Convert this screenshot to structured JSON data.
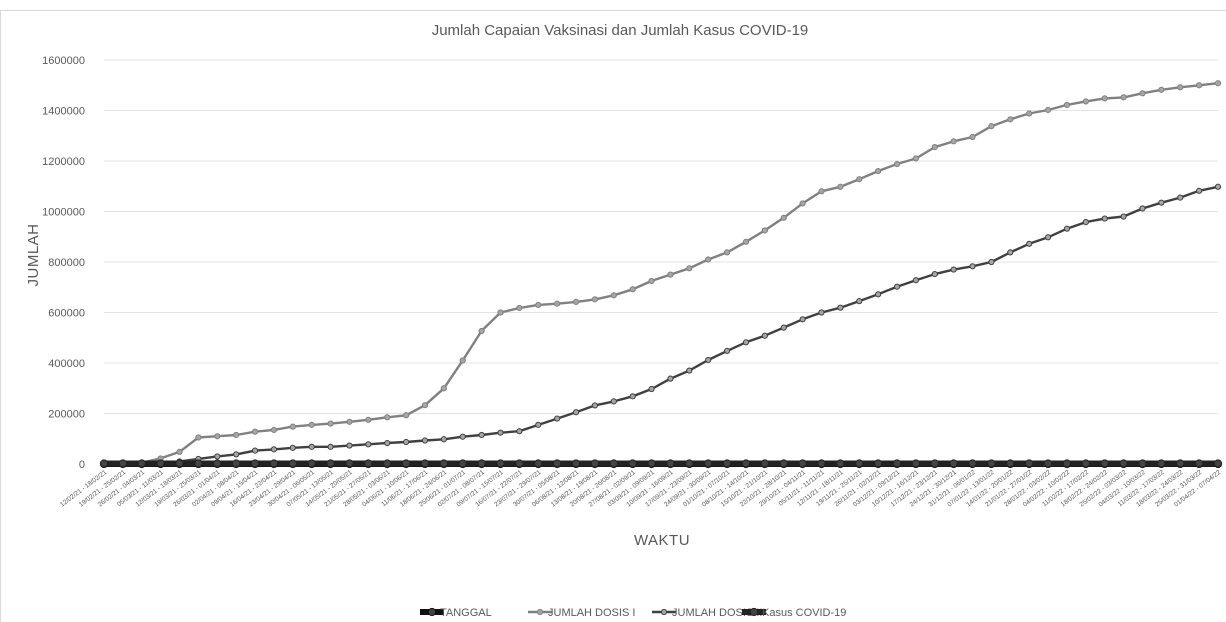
{
  "chart_data": {
    "type": "line",
    "title": "Jumlah Capaian Vaksinasi dan Jumlah Kasus COVID-19",
    "xlabel": "WAKTU",
    "ylabel": "JUMLAH",
    "ylim": [
      0,
      1600000
    ],
    "yticks": [
      "0",
      "200000",
      "400000",
      "600000",
      "800000",
      "1000000",
      "1200000",
      "1400000",
      "1600000"
    ],
    "grid": "horizontal",
    "legend_position": "bottom",
    "categories": [
      "12/02/21 - 18/02/21",
      "19/02/21 - 25/02/21",
      "26/02/21 - 04/03/21",
      "05/03/21 - 11/03/21",
      "12/03/21 - 18/03/21",
      "19/03/21 - 25/03/21",
      "26/03/21 - 01/04/21",
      "02/04/21 - 08/04/21",
      "09/04/21 - 15/04/21",
      "16/04/21 - 22/04/21",
      "23/04/21 - 29/04/21",
      "30/04/21 - 06/05/21",
      "07/05/21 - 13/05/21",
      "14/05/21 - 20/05/21",
      "21/05/21 - 27/05/21",
      "28/05/21 - 03/06/21",
      "04/06/21 - 10/06/21",
      "11/06/21 - 17/06/21",
      "18/06/21 - 24/06/21",
      "25/06/21 - 01/07/21",
      "02/07/21 - 08/07/21",
      "09/07/21 - 15/07/21",
      "16/07/21 - 22/07/21",
      "23/07/21 - 29/07/21",
      "30/07/21 - 05/08/21",
      "06/08/21 - 12/08/21",
      "13/08/21 - 19/08/21",
      "20/08/21 - 26/08/21",
      "27/08/21 - 02/09/21",
      "03/09/21 - 09/09/21",
      "10/09/21 - 16/09/21",
      "17/09/21 - 23/09/21",
      "24/09/21 - 30/09/21",
      "01/10/21 - 07/10/21",
      "08/10/21 - 14/10/21",
      "15/10/21 - 21/10/21",
      "22/10/21 - 28/10/21",
      "29/10/21 - 04/11/21",
      "05/11/21 - 11/11/21",
      "12/11/21 - 18/11/21",
      "19/11/21 - 25/11/21",
      "26/11/21 - 02/12/21",
      "03/12/21 - 09/12/21",
      "10/12/21 - 16/12/21",
      "17/12/21 - 23/12/21",
      "24/12/21 - 30/12/21",
      "31/12/21 - 06/01/22",
      "07/01/22 - 13/01/22",
      "14/01/22 - 20/01/22",
      "21/01/22 - 27/01/22",
      "28/01/22 - 03/02/22",
      "04/02/22 - 10/02/22",
      "11/02/22 - 17/02/22",
      "18/02/22 - 24/02/22",
      "25/02/22 - 03/03/22",
      "04/03/22 - 10/03/22",
      "11/03/22 - 17/03/22",
      "18/03/22 - 24/03/22",
      "25/03/22 - 31/03/22",
      "01/04/22 - 07/04/22"
    ],
    "series": [
      {
        "name": "TANGGAL",
        "color": "#111111",
        "values": [
          0,
          0,
          0,
          0,
          0,
          0,
          0,
          0,
          0,
          0,
          0,
          0,
          0,
          0,
          0,
          0,
          0,
          0,
          0,
          0,
          0,
          0,
          0,
          0,
          0,
          0,
          0,
          0,
          0,
          0,
          0,
          0,
          0,
          0,
          0,
          0,
          0,
          0,
          0,
          0,
          0,
          0,
          0,
          0,
          0,
          0,
          0,
          0,
          0,
          0,
          0,
          0,
          0,
          0,
          0,
          0,
          0,
          0,
          0,
          0
        ]
      },
      {
        "name": "JUMLAH DOSIS I",
        "color": "#808080",
        "values": [
          0,
          0,
          5000,
          22000,
          48000,
          105000,
          110000,
          115000,
          128000,
          135000,
          148000,
          155000,
          160000,
          167000,
          175000,
          185000,
          193000,
          233000,
          300000,
          410000,
          527000,
          600000,
          618000,
          630000,
          635000,
          642000,
          652000,
          668000,
          692000,
          725000,
          750000,
          775000,
          810000,
          838000,
          880000,
          925000,
          975000,
          1032000,
          1080000,
          1098000,
          1128000,
          1160000,
          1188000,
          1210000,
          1255000,
          1278000,
          1295000,
          1338000,
          1365000,
          1388000,
          1402000,
          1422000,
          1436000,
          1448000,
          1452000,
          1468000,
          1482000,
          1492000,
          1500000,
          1508000
        ]
      },
      {
        "name": "JUMLAH DOSIS II",
        "color": "#404040",
        "values": [
          0,
          0,
          0,
          0,
          10000,
          20000,
          30000,
          38000,
          53000,
          58000,
          64000,
          68000,
          68000,
          73000,
          78000,
          83000,
          87000,
          93000,
          98000,
          108000,
          115000,
          124000,
          130000,
          155000,
          180000,
          205000,
          232000,
          248000,
          268000,
          297000,
          338000,
          370000,
          412000,
          448000,
          482000,
          508000,
          540000,
          573000,
          600000,
          619000,
          645000,
          672000,
          702000,
          728000,
          752000,
          770000,
          783000,
          800000,
          838000,
          872000,
          898000,
          932000,
          958000,
          972000,
          980000,
          1012000,
          1035000,
          1055000,
          1082000,
          1098000
        ]
      },
      {
        "name": "Kasus COVID-19",
        "color": "#222222",
        "values": [
          2000,
          2000,
          2000,
          2000,
          2000,
          2000,
          2000,
          2000,
          2000,
          2000,
          2000,
          2000,
          2000,
          2000,
          2000,
          2000,
          2000,
          2000,
          2000,
          2000,
          2000,
          2000,
          2000,
          2000,
          2000,
          2000,
          2000,
          2000,
          2000,
          2000,
          2000,
          2000,
          2000,
          2000,
          2000,
          2000,
          2000,
          2000,
          2000,
          2000,
          2000,
          2000,
          2000,
          2000,
          2000,
          2000,
          2000,
          2000,
          2000,
          2000,
          2000,
          2000,
          2000,
          2000,
          2000,
          2000,
          2000,
          2000,
          2000,
          2000
        ]
      }
    ]
  }
}
